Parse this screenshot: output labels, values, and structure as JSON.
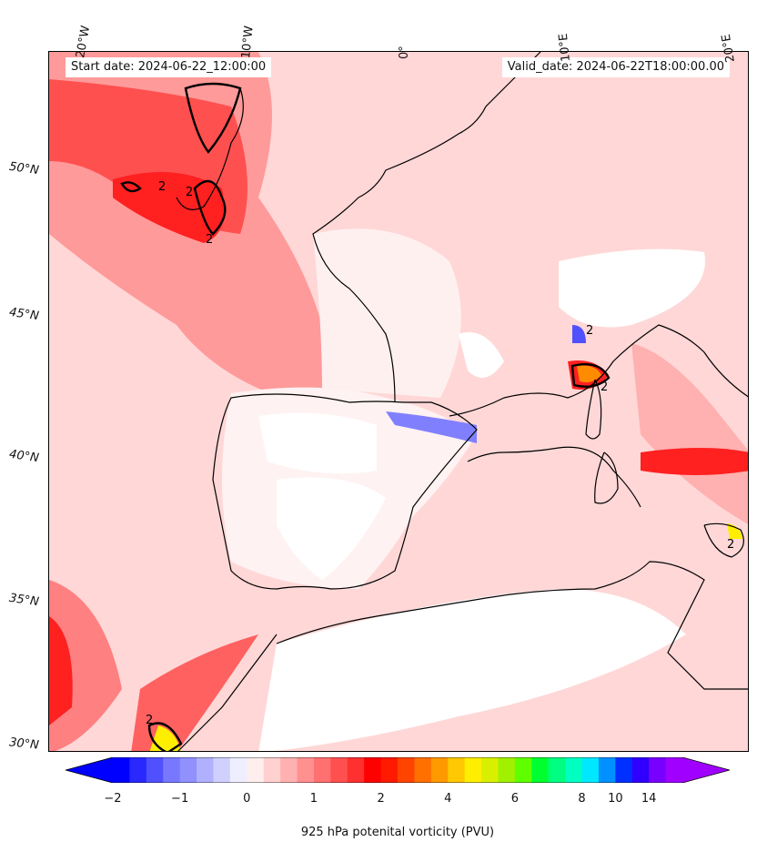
{
  "header": {
    "start_date": "Start date: 2024-06-22_12:00:00",
    "valid_date": "Valid_date: 2024-06-22T18:00:00.00"
  },
  "axes": {
    "longitude_labels": [
      "20°W",
      "10°W",
      "0°",
      "10°E",
      "20°E"
    ],
    "latitude_labels": [
      "50°N",
      "45°N",
      "40°N",
      "35°N",
      "30°N"
    ]
  },
  "map": {
    "contour_labels": [
      "2",
      "2",
      "2",
      "2",
      "2",
      "2",
      "2"
    ],
    "colors": {
      "land_white": "#ffffff",
      "ocean_light": "#ffd7d7",
      "strong_red": "#ff2020",
      "medium_red": "#ff7070",
      "blue_negative": "#8080ff",
      "orange": "#ff8c00",
      "yellow": "#ffee00",
      "coastline": "#000000"
    }
  },
  "colorbar": {
    "title": "925 hPa potenital vorticity (PVU)",
    "ticks": [
      "−2",
      "−1",
      "0",
      "1",
      "2",
      "4",
      "6",
      "8",
      "10",
      "14"
    ],
    "colors": [
      "#0000ff",
      "#2828ff",
      "#5050ff",
      "#7878ff",
      "#9090ff",
      "#b0b0ff",
      "#d0d0ff",
      "#eeeeff",
      "#ffeeee",
      "#ffd0d0",
      "#ffb0b0",
      "#ff9090",
      "#ff7070",
      "#ff5050",
      "#ff3030",
      "#ff0000",
      "#ff1a00",
      "#ff4400",
      "#ff7000",
      "#ff9900",
      "#ffc800",
      "#ffee00",
      "#d8f000",
      "#a0f000",
      "#60ff00",
      "#00ff30",
      "#00ff80",
      "#00ffc0",
      "#00e8ff",
      "#0090ff",
      "#0030ff",
      "#3000ff",
      "#7800ff",
      "#a000ff"
    ]
  }
}
